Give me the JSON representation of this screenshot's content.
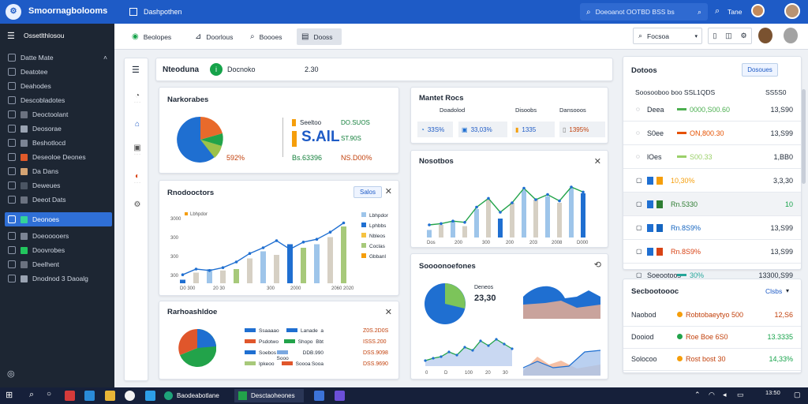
{
  "app": {
    "title": "Smoornagbolooms",
    "search_text": "Doeoanot OOTBD BSS bs",
    "top_label": "Tane",
    "tab": "Dashpothen"
  },
  "sidebar": {
    "header": "Ossetlthlosou",
    "items": [
      {
        "label": "Datte Mate"
      },
      {
        "label": "Deatotee"
      },
      {
        "label": "Deahodes"
      },
      {
        "label": "Descobladotes"
      },
      {
        "label": "Deoctoolant"
      },
      {
        "label": "Deosorae"
      },
      {
        "label": "Beshotlocd"
      },
      {
        "label": "Deseoloe Deones"
      },
      {
        "label": "Da Dans"
      },
      {
        "label": "Deweues"
      },
      {
        "label": "Deeot Dats"
      },
      {
        "label": "Deonoes"
      },
      {
        "label": "Doeooooers"
      },
      {
        "label": "Doovrobes"
      },
      {
        "label": "Deelhent"
      },
      {
        "label": "Dnodnod 3 Daoalg"
      }
    ]
  },
  "toolbar": {
    "btn1": "Beolopes",
    "btn2": "Doorlous",
    "btn3": "Boooes",
    "btn4": "Dooss",
    "right_btn": "Focsoa"
  },
  "header_card": {
    "title": "Nteoduna",
    "status": "Docnoko",
    "value": "2.30"
  },
  "card1": {
    "title": "Narkorabes",
    "pct": "592%",
    "big": "S.AlL",
    "label1": "Seeltoo",
    "label2": "Bs.63396",
    "val1": "DO.SUOS",
    "val2": "ST.90S",
    "val3": "NS.D00%"
  },
  "card2": {
    "title": "Rnodooctors",
    "button": "Salos",
    "legend": [
      "Lbhpdor",
      "Lphbbs",
      "Nbleos",
      "Coclas",
      "Gbbanl"
    ],
    "yticks": [
      "3000",
      "300",
      "300",
      "300"
    ],
    "xticks": [
      "D0 300",
      "20 30",
      "300",
      "2000",
      "2060 2020"
    ]
  },
  "card3": {
    "title": "Rarhoashldoe",
    "legend": [
      [
        "Ssaaaao",
        "Lanade",
        "a"
      ],
      [
        "Psdotwo",
        "Shopo",
        "Bbt"
      ],
      [
        "Soebos",
        "Sooo",
        "DDB.990"
      ],
      [
        "Ipkeoo",
        "Soooa",
        "Sooa"
      ]
    ],
    "right": [
      "Z0S.2D0S",
      "ISSS.200",
      "DSS.9098",
      "DSS.9690"
    ]
  },
  "market": {
    "title": "Mantet Rocs",
    "h1": "Doadolod",
    "h2": "Disoobs",
    "h3": "Dansooos",
    "v1": "33S%",
    "v2": "33,03%",
    "v3": "1335",
    "v4": "1395%"
  },
  "card4": {
    "title": "Nosotbos",
    "xticks": [
      "Dos",
      "200",
      "300",
      "200",
      "203",
      "2008",
      "D000"
    ]
  },
  "card5": {
    "title": "Soooonoefones",
    "label": "Deneos",
    "value": "23,30",
    "xticks": [
      "0",
      "D",
      "100",
      "20",
      "30"
    ]
  },
  "detail": {
    "title": "Dotoos",
    "button": "Dosoues",
    "h1": "Soosooboo boo SSL1QDS",
    "h2": "SS5S0",
    "rows": [
      {
        "name": "Deea",
        "mid": "0000,S00.60",
        "val": "13,S90",
        "color": "#4caf50"
      },
      {
        "name": "S0ee",
        "mid": "ON,800.30",
        "val": "13,S99",
        "color": "#e65100"
      },
      {
        "name": "lOes",
        "mid": "S00.33",
        "val": "1,BB0",
        "color": "#9bd06a"
      },
      {
        "name": "",
        "mid": "10,30%",
        "val": "3,3,30",
        "color": "#f59e0b"
      },
      {
        "name": "",
        "mid": "Rn.5330",
        "val": "10",
        "color": "#2e7d32"
      },
      {
        "name": "",
        "mid": "Rn.8S9%",
        "val": "13,S99",
        "color": "#1565c0"
      },
      {
        "name": "",
        "mid": "Rn.8S9%",
        "val": "13,S99",
        "color": "#d84315"
      },
      {
        "name": "Soeootoos",
        "mid": "30%",
        "val": "13300,S99",
        "color": "#26a69a"
      }
    ]
  },
  "summary": {
    "title": "Secbootoooc",
    "button": "Clsbs",
    "rows": [
      {
        "name": "Naobod",
        "mid": "Robtobaeytyo 500",
        "val": "12,S6"
      },
      {
        "name": "Dooiod",
        "mid": "Roe Boe 6S0",
        "val": "13.3335"
      },
      {
        "name": "Solocoo",
        "mid": "Rost bost 30",
        "val": "14,33%"
      }
    ]
  },
  "taskbar": {
    "item1": "Baodeabotlane",
    "item2": "Desctaoheones",
    "time": "13:50"
  },
  "colors": {
    "accent": "#1e5bc6",
    "sidebar": "#1d2633",
    "active": "#2f6fd6"
  }
}
